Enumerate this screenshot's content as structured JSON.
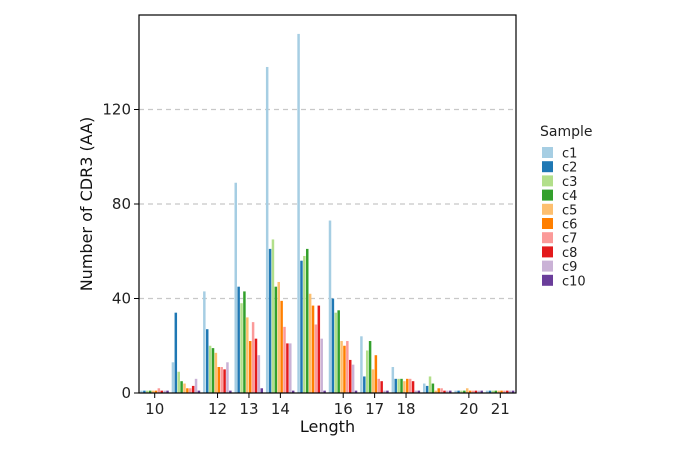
{
  "chart_data": {
    "type": "bar",
    "xlabel": "Length",
    "ylabel": "Number of CDR3 (AA)",
    "ylim": [
      0,
      160
    ],
    "y_ticks": [
      0,
      40,
      80,
      120
    ],
    "grid": "horizontal dashed",
    "legend_title": "Sample",
    "legend_position": "right",
    "x_ticks": [
      10,
      12,
      13,
      14,
      16,
      17,
      18,
      20,
      21
    ],
    "x_tick_labels": [
      "10",
      "12",
      "13",
      "14",
      "16",
      "17",
      "18",
      "20",
      "21"
    ],
    "x_range": [
      9.5,
      21.5
    ],
    "categories": [
      10,
      11,
      12,
      13,
      14,
      15,
      16,
      17,
      18,
      19,
      20,
      21
    ],
    "series": [
      {
        "name": "c1",
        "color": "#a6cee3",
        "values": [
          1,
          13,
          43,
          89,
          138,
          152,
          73,
          24,
          11,
          4,
          1,
          1
        ]
      },
      {
        "name": "c2",
        "color": "#1f78b4",
        "values": [
          1,
          34,
          27,
          45,
          61,
          56,
          40,
          7,
          6,
          3,
          1,
          1
        ]
      },
      {
        "name": "c3",
        "color": "#b2df8a",
        "values": [
          1,
          9,
          20,
          38,
          65,
          58,
          34,
          18,
          6,
          7,
          1,
          1
        ]
      },
      {
        "name": "c4",
        "color": "#33a02c",
        "values": [
          1,
          5,
          19,
          43,
          45,
          61,
          35,
          22,
          6,
          4,
          1,
          1
        ]
      },
      {
        "name": "c5",
        "color": "#fdbf6f",
        "values": [
          1,
          4,
          17,
          32,
          47,
          42,
          22,
          10,
          5,
          1,
          2,
          1
        ]
      },
      {
        "name": "c6",
        "color": "#ff7f00",
        "values": [
          1,
          2,
          11,
          22,
          39,
          37,
          20,
          16,
          6,
          2,
          1,
          1
        ]
      },
      {
        "name": "c7",
        "color": "#fb9a99",
        "values": [
          2,
          2,
          11,
          30,
          28,
          29,
          22,
          6,
          6,
          2,
          1,
          1
        ]
      },
      {
        "name": "c8",
        "color": "#e31a1c",
        "values": [
          1,
          3,
          10,
          23,
          21,
          37,
          14,
          5,
          5,
          1,
          1,
          1
        ]
      },
      {
        "name": "c9",
        "color": "#cab2d6",
        "values": [
          1,
          6,
          13,
          16,
          21,
          23,
          12,
          1,
          1,
          1,
          1,
          1
        ]
      },
      {
        "name": "c10",
        "color": "#6a3d9a",
        "values": [
          1,
          1,
          1,
          2,
          1,
          1,
          1,
          1,
          1,
          1,
          1,
          1
        ]
      }
    ]
  }
}
